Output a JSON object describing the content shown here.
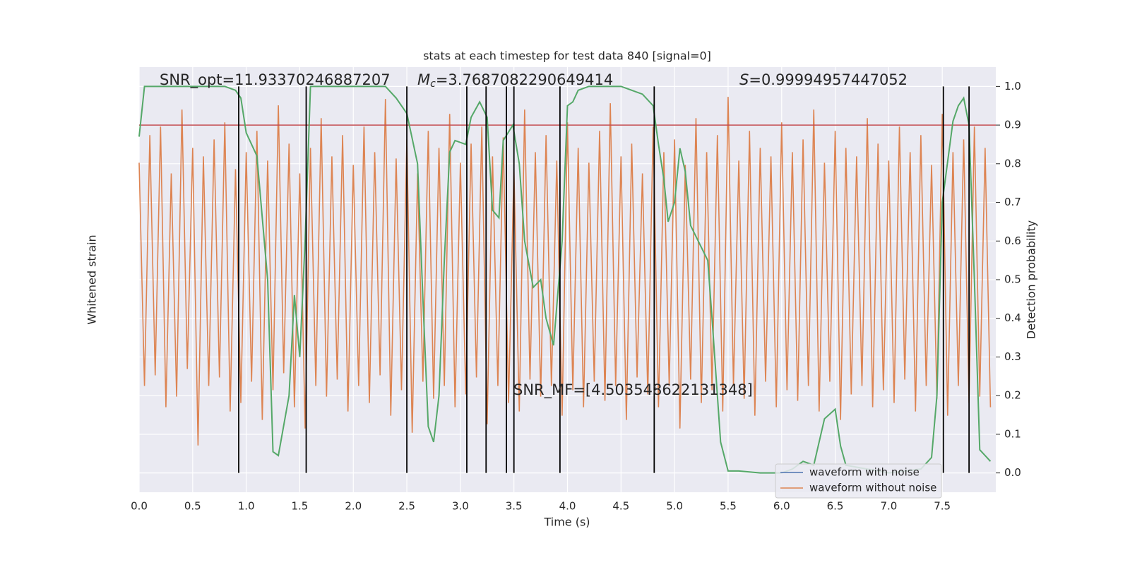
{
  "chart_data": {
    "type": "line",
    "title": "stats at each timestep for test data 840 [signal=0]",
    "xlabel": "Time (s)",
    "ylabel": "Whitened strain",
    "y2label": "Detection probability",
    "xlim": [
      0,
      8
    ],
    "xticks": [
      {
        "value": 0,
        "label": "0.0"
      },
      0.5,
      {
        "value": 1,
        "label": "1.0"
      },
      1.5,
      {
        "value": 2,
        "label": "2.0"
      },
      2.5,
      {
        "value": 3,
        "label": "3.0"
      },
      3.5,
      {
        "value": 4,
        "label": "4.0"
      },
      4.5,
      {
        "value": 5,
        "label": "5.0"
      },
      5.5,
      {
        "value": 6,
        "label": "6.0"
      },
      6.5,
      {
        "value": 7,
        "label": "7.0"
      },
      7.5
    ],
    "ylim": [
      -1,
      1
    ],
    "y2lim": [
      -0.05,
      1.05
    ],
    "y2ticks": [
      {
        "value": 0,
        "label": "0.0"
      },
      0.1,
      0.2,
      0.3,
      0.4,
      0.5,
      0.6,
      0.7,
      0.8,
      0.9,
      {
        "value": 1,
        "label": "1.0"
      }
    ],
    "grid": true,
    "legend_loc": "lower right",
    "series": [
      {
        "name": "waveform with noise",
        "color": "#4c72b0",
        "x": [],
        "values": []
      },
      {
        "name": "waveform without noise",
        "color": "#dd8452",
        "x": [
          0,
          0.05,
          0.1,
          0.15,
          0.2,
          0.25,
          0.3,
          0.35,
          0.4,
          0.45,
          0.5,
          0.55,
          0.6,
          0.65,
          0.7,
          0.75,
          0.8,
          0.85,
          0.9,
          0.95,
          1,
          1.05,
          1.1,
          1.15,
          1.2,
          1.25,
          1.3,
          1.35,
          1.4,
          1.45,
          1.5,
          1.55,
          1.6,
          1.65,
          1.7,
          1.75,
          1.8,
          1.85,
          1.9,
          1.95,
          2,
          2.05,
          2.1,
          2.15,
          2.2,
          2.25,
          2.3,
          2.35,
          2.4,
          2.45,
          2.5,
          2.55,
          2.6,
          2.65,
          2.7,
          2.75,
          2.8,
          2.85,
          2.9,
          2.95,
          3,
          3.05,
          3.1,
          3.15,
          3.2,
          3.25,
          3.3,
          3.35,
          3.4,
          3.45,
          3.5,
          3.55,
          3.6,
          3.65,
          3.7,
          3.75,
          3.8,
          3.85,
          3.9,
          3.95,
          4,
          4.05,
          4.1,
          4.15,
          4.2,
          4.25,
          4.3,
          4.35,
          4.4,
          4.45,
          4.5,
          4.55,
          4.6,
          4.65,
          4.7,
          4.75,
          4.8,
          4.85,
          4.9,
          4.95,
          5,
          5.05,
          5.1,
          5.15,
          5.2,
          5.25,
          5.3,
          5.35,
          5.4,
          5.45,
          5.5,
          5.55,
          5.6,
          5.65,
          5.7,
          5.75,
          5.8,
          5.85,
          5.9,
          5.95,
          6,
          6.05,
          6.1,
          6.15,
          6.2,
          6.25,
          6.3,
          6.35,
          6.4,
          6.45,
          6.5,
          6.55,
          6.6,
          6.65,
          6.7,
          6.75,
          6.8,
          6.85,
          6.9,
          6.95,
          7,
          7.05,
          7.1,
          7.15,
          7.2,
          7.25,
          7.3,
          7.35,
          7.4,
          7.45,
          7.5,
          7.55,
          7.6,
          7.65,
          7.7,
          7.75,
          7.8,
          7.85,
          7.9,
          7.95
        ],
        "values": [
          0.55,
          -0.5,
          0.68,
          -0.45,
          0.72,
          -0.6,
          0.5,
          -0.55,
          0.8,
          -0.42,
          0.62,
          -0.78,
          0.58,
          -0.5,
          0.66,
          -0.46,
          0.74,
          -0.62,
          0.52,
          -0.58,
          0.6,
          -0.48,
          0.7,
          -0.66,
          0.56,
          -0.52,
          0.82,
          -0.44,
          0.64,
          -0.6,
          0.5,
          -0.7,
          0.62,
          -0.5,
          0.76,
          -0.55,
          0.58,
          -0.47,
          0.68,
          -0.62,
          0.54,
          -0.5,
          0.72,
          -0.58,
          0.6,
          -0.45,
          0.85,
          -0.64,
          0.57,
          -0.52,
          0.66,
          -0.72,
          0.5,
          -0.48,
          0.7,
          -0.56,
          0.62,
          -0.5,
          0.78,
          -0.6,
          0.55,
          -0.54,
          0.64,
          -0.46,
          0.72,
          -0.68,
          0.58,
          -0.5,
          0.67,
          -0.58,
          0.52,
          -0.62,
          0.8,
          -0.47,
          0.6,
          -0.55,
          0.68,
          -0.5,
          0.56,
          -0.64,
          0.74,
          -0.52,
          0.62,
          -0.6,
          0.55,
          -0.48,
          0.7,
          -0.57,
          0.83,
          -0.5,
          0.58,
          -0.66,
          0.64,
          -0.46,
          0.5,
          -0.54,
          0.72,
          -0.6,
          0.6,
          -0.5,
          0.66,
          -0.7,
          0.54,
          -0.47,
          0.76,
          -0.58,
          0.6,
          -0.52,
          0.68,
          -0.62,
          0.86,
          -0.5,
          0.56,
          -0.56,
          0.7,
          -0.64,
          0.62,
          -0.48,
          0.58,
          -0.6,
          0.74,
          -0.52,
          0.6,
          -0.57,
          0.66,
          -0.5,
          0.8,
          -0.62,
          0.55,
          -0.48,
          0.7,
          -0.66,
          0.62,
          -0.54,
          0.58,
          -0.5,
          0.76,
          -0.6,
          0.64,
          -0.52,
          0.56,
          -0.58,
          0.72,
          -0.47,
          0.6,
          -0.62,
          0.68,
          -0.5,
          0.54,
          -0.56,
          0.78,
          -0.64,
          0.6,
          -0.5,
          0.66,
          -0.58,
          0.72,
          -0.55,
          0.62,
          -0.6
        ]
      }
    ],
    "probability": {
      "color": "#55a868",
      "axis": "y2",
      "x": [
        0,
        0.05,
        0.2,
        0.5,
        0.8,
        0.9,
        0.95,
        1.0,
        1.1,
        1.2,
        1.25,
        1.3,
        1.4,
        1.45,
        1.5,
        1.55,
        1.6,
        2.3,
        2.4,
        2.5,
        2.6,
        2.65,
        2.7,
        2.75,
        2.8,
        2.85,
        2.9,
        2.95,
        3.05,
        3.1,
        3.18,
        3.25,
        3.3,
        3.36,
        3.4,
        3.49,
        3.55,
        3.6,
        3.68,
        3.75,
        3.8,
        3.87,
        3.95,
        4.0,
        4.05,
        4.1,
        4.2,
        4.5,
        4.6,
        4.7,
        4.8,
        4.85,
        4.9,
        4.94,
        5.0,
        5.05,
        5.1,
        5.15,
        5.31,
        5.35,
        5.43,
        5.5,
        5.6,
        5.8,
        6.0,
        6.1,
        6.2,
        6.3,
        6.4,
        6.5,
        6.55,
        6.6,
        7.0,
        7.3,
        7.4,
        7.45,
        7.5,
        7.6,
        7.65,
        7.7,
        7.75,
        7.8,
        7.85,
        7.95
      ],
      "values": [
        0.87,
        1,
        1,
        1,
        1,
        0.99,
        0.97,
        0.88,
        0.82,
        0.5,
        0.055,
        0.045,
        0.2,
        0.46,
        0.3,
        0.6,
        1,
        1,
        0.97,
        0.93,
        0.8,
        0.45,
        0.12,
        0.08,
        0.2,
        0.55,
        0.83,
        0.86,
        0.85,
        0.92,
        0.96,
        0.92,
        0.68,
        0.66,
        0.86,
        0.9,
        0.8,
        0.6,
        0.48,
        0.5,
        0.4,
        0.33,
        0.6,
        0.95,
        0.96,
        0.99,
        1,
        1,
        0.99,
        0.98,
        0.95,
        0.85,
        0.76,
        0.65,
        0.7,
        0.84,
        0.78,
        0.64,
        0.55,
        0.4,
        0.08,
        0.005,
        0.005,
        0,
        0,
        0.01,
        0.03,
        0.02,
        0.14,
        0.165,
        0.07,
        0.02,
        0,
        0.01,
        0.04,
        0.2,
        0.7,
        0.91,
        0.95,
        0.97,
        0.9,
        0.5,
        0.06,
        0.03
      ]
    },
    "threshold": 0.9,
    "threshold_color": "#c44e52",
    "vlines": [
      0.93,
      1.56,
      2.5,
      3.06,
      3.24,
      3.43,
      3.5,
      3.93,
      4.81,
      7.51,
      7.75
    ],
    "vline_color": "#000000",
    "annotations": {
      "snr_opt": "SNR_opt=11.93370246887207",
      "mc": {
        "symbol": "M",
        "subscript": "c",
        "text": "=3.7687082290649414"
      },
      "s": {
        "symbol": "S",
        "text": "=0.99994957447052"
      },
      "snr_mf": "SNR_MF=[4.503548622131348]"
    }
  }
}
